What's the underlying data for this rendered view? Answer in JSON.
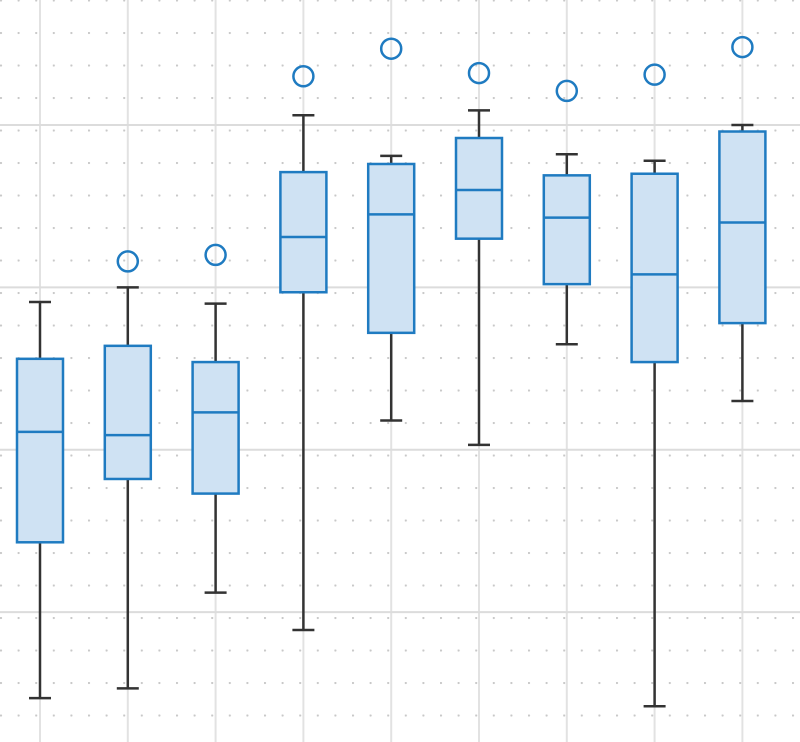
{
  "chart_data": {
    "type": "box",
    "categories": [
      null,
      null,
      null,
      null,
      null,
      null,
      null,
      null,
      null
    ],
    "boxes": [
      {
        "low": -0.53,
        "q1": 0.43,
        "median": 1.11,
        "q3": 1.56,
        "high": 1.91,
        "outliers": []
      },
      {
        "low": -0.47,
        "q1": 0.82,
        "median": 1.09,
        "q3": 1.64,
        "high": 2.0,
        "outliers": [
          2.16
        ]
      },
      {
        "low": 0.12,
        "q1": 0.73,
        "median": 1.23,
        "q3": 1.54,
        "high": 1.9,
        "outliers": [
          2.2
        ]
      },
      {
        "low": -0.11,
        "q1": 1.97,
        "median": 2.31,
        "q3": 2.71,
        "high": 3.06,
        "outliers": [
          3.3
        ]
      },
      {
        "low": 1.18,
        "q1": 1.72,
        "median": 2.45,
        "q3": 2.76,
        "high": 2.81,
        "outliers": [
          3.47
        ]
      },
      {
        "low": 1.03,
        "q1": 2.3,
        "median": 2.6,
        "q3": 2.92,
        "high": 3.09,
        "outliers": [
          3.32
        ]
      },
      {
        "low": 1.65,
        "q1": 2.02,
        "median": 2.43,
        "q3": 2.69,
        "high": 2.82,
        "outliers": [
          3.21
        ]
      },
      {
        "low": -0.58,
        "q1": 1.54,
        "median": 2.08,
        "q3": 2.7,
        "high": 2.78,
        "outliers": [
          3.31
        ]
      },
      {
        "low": 1.3,
        "q1": 1.78,
        "median": 2.4,
        "q3": 2.96,
        "high": 3.0,
        "outliers": [
          3.48
        ]
      }
    ],
    "color": "#1f7bc1",
    "box_fill": "#cfe2f3",
    "whisker_color": "#333333",
    "ylim": [
      -0.8,
      3.77
    ],
    "yticks": [
      0,
      1,
      2,
      3
    ],
    "grid": true,
    "minor_grid": true
  }
}
